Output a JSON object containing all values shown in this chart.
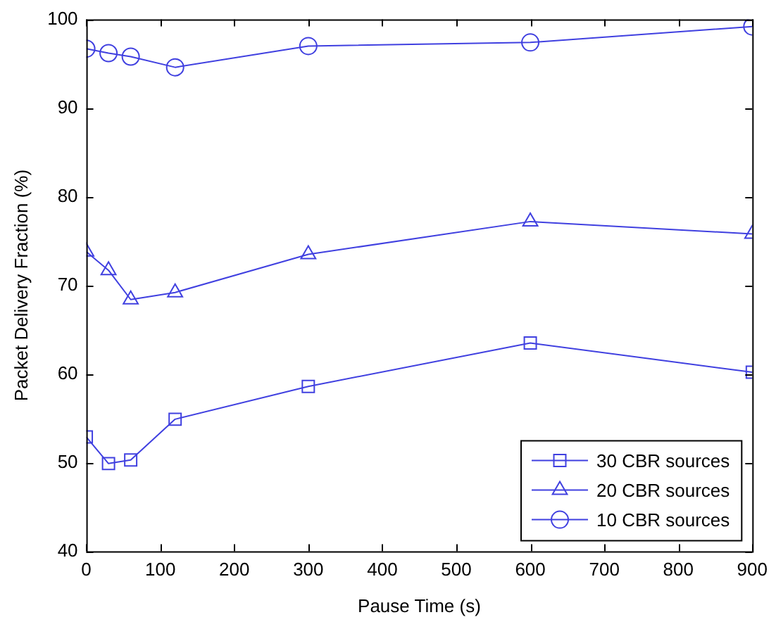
{
  "chart_data": {
    "type": "line",
    "xlabel": "Pause Time (s)",
    "ylabel": "Packet Delivery Fraction (%)",
    "x": [
      0,
      30,
      60,
      120,
      300,
      600,
      900
    ],
    "series": [
      {
        "name": "30 CBR sources",
        "color": "#4040e0",
        "marker": "square",
        "values": [
          52.9,
          49.9,
          50.3,
          54.9,
          58.6,
          63.5,
          60.2
        ]
      },
      {
        "name": "20 CBR sources",
        "color": "#4040e0",
        "marker": "triangle",
        "values": [
          73.8,
          71.7,
          68.4,
          69.2,
          73.5,
          77.2,
          75.8
        ]
      },
      {
        "name": "10 CBR sources",
        "color": "#4040e0",
        "marker": "circle",
        "values": [
          96.7,
          96.2,
          95.8,
          94.6,
          97.0,
          97.4,
          99.2
        ]
      }
    ],
    "xlim": [
      0,
      900
    ],
    "xticks": [
      0,
      100,
      200,
      300,
      400,
      500,
      600,
      700,
      800,
      900
    ],
    "ylim": [
      40,
      100
    ],
    "yticks": [
      40,
      50,
      60,
      70,
      80,
      90,
      100
    ],
    "grid": false,
    "legend": "bottom right",
    "line_style": "solid"
  }
}
